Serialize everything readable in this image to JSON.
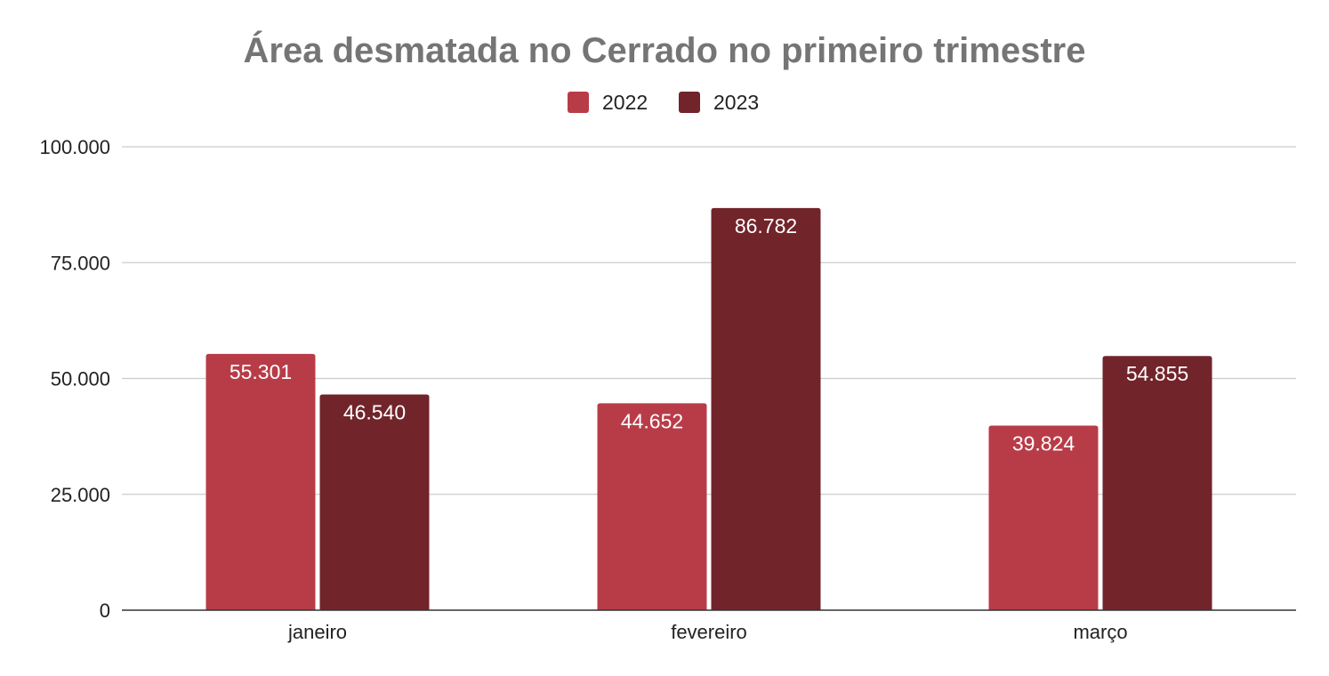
{
  "chart_data": {
    "type": "bar",
    "title": "Área desmatada no Cerrado no primeiro trimestre",
    "categories": [
      "janeiro",
      "fevereiro",
      "março"
    ],
    "series": [
      {
        "name": "2022",
        "color": "#b83c48",
        "values": [
          55301,
          44652,
          39824
        ],
        "labels": [
          "55.301",
          "44.652",
          "39.824"
        ]
      },
      {
        "name": "2023",
        "color": "#72242b",
        "values": [
          46540,
          86782,
          54855
        ],
        "labels": [
          "46.540",
          "86.782",
          "54.855"
        ]
      }
    ],
    "ylim": [
      0,
      100000
    ],
    "yticks": [
      {
        "value": 0,
        "label": "0"
      },
      {
        "value": 25000,
        "label": "25.000"
      },
      {
        "value": 50000,
        "label": "50.000"
      },
      {
        "value": 75000,
        "label": "75.000"
      },
      {
        "value": 100000,
        "label": "100.000"
      }
    ],
    "xlabel": "",
    "ylabel": "",
    "legend_position": "top-center",
    "grid": true
  }
}
